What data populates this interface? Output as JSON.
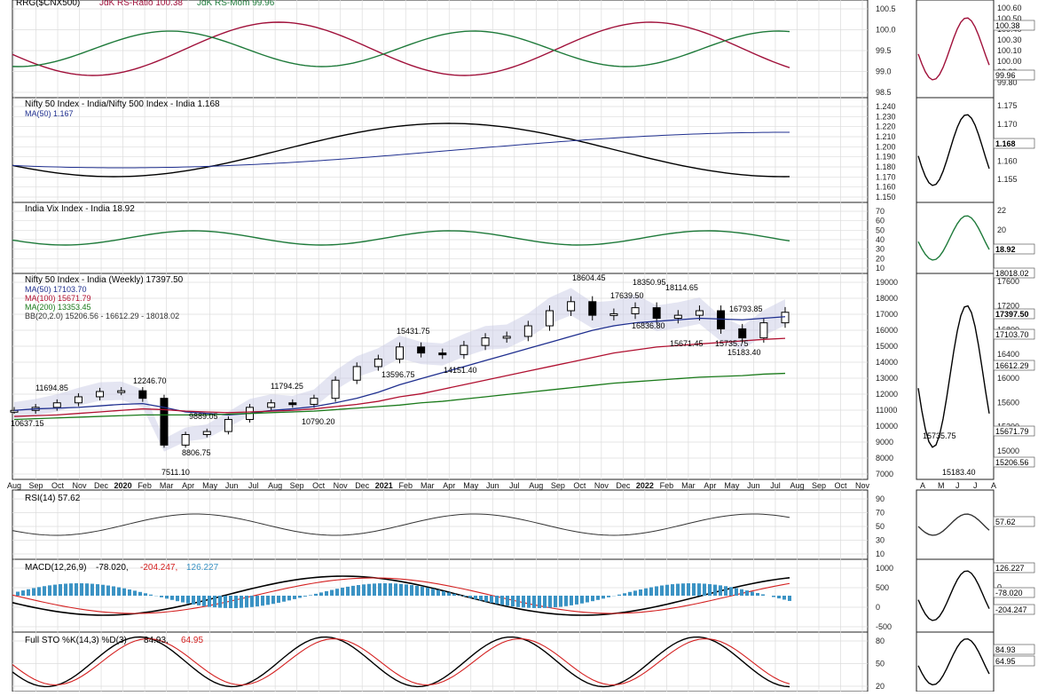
{
  "colors": {
    "frame": "#222222",
    "grid": "#d8d8d8",
    "price": "#000000",
    "ma50": "#1f2f8f",
    "ma100": "#b01030",
    "ma200": "#1a7a1a",
    "bb": "#c9cce6",
    "rrg_ratio": "#a0103a",
    "rrg_mom": "#1e7a3a",
    "rsi": "#333333",
    "rsi_fill_hi": "#3c7a3c",
    "rsi_fill_lo": "#8a1d2d",
    "macd_hist": "#3b93c4",
    "sto_d": "#d42020"
  },
  "panels": {
    "rrg": {
      "legend_prefix": "RRG($CNX500)",
      "legend_ratio": "JdK RS-Ratio 100.38",
      "legend_mom": "JdK RS-Mom 99.96",
      "ticks": [
        "100.5",
        "100.0",
        "99.5",
        "99.0",
        "98.5"
      ],
      "side_ticks": [
        "100.60",
        "100.50",
        "100.40",
        "100.30",
        "100.10",
        "100.00",
        "99.90",
        "99.80"
      ],
      "side_label_ratio": "100.38",
      "side_label_mom": "99.96"
    },
    "rs": {
      "legend": "Nifty 50 Index - India/Nifty 500 Index - India 1.168",
      "legend_ma": "MA(50) 1.167",
      "ticks": [
        "1.240",
        "1.230",
        "1.220",
        "1.210",
        "1.200",
        "1.190",
        "1.180",
        "1.170",
        "1.160",
        "1.150"
      ],
      "side_ticks": [
        "1.175",
        "1.170",
        "1.165",
        "1.160",
        "1.155"
      ],
      "side_label": "1.168"
    },
    "vix": {
      "legend": "India Vix Index - India 18.92",
      "ticks": [
        "70",
        "60",
        "50",
        "40",
        "30",
        "20",
        "10"
      ],
      "side_ticks": [
        "22",
        "20",
        "18"
      ],
      "side_label": "18.92"
    },
    "price": {
      "legend": "Nifty 50 Index - India (Weekly) 17397.50",
      "legend_ma50": "MA(50) 17103.70",
      "legend_ma100": "MA(100) 15671.79",
      "legend_ma200": "MA(200) 13353.45",
      "legend_bb": "BB(20,2.0) 15206.56 - 16612.29 - 18018.02",
      "ticks": [
        "19000",
        "18000",
        "17000",
        "16000",
        "15000",
        "14000",
        "13000",
        "12000",
        "11000",
        "10000",
        "9000",
        "8000",
        "7000"
      ],
      "annotations": [
        "11694.85",
        "12246.70",
        "10637.15",
        "9889.05",
        "8806.75",
        "7511.10",
        "11794.25",
        "10790.20",
        "15431.75",
        "13596.75",
        "14151.40",
        "18604.45",
        "17639.50",
        "18350.95",
        "18114.65",
        "16836.80",
        "16793.85",
        "15671.45",
        "15735.75",
        "15183.40"
      ],
      "side_ticks": [
        "17600",
        "17200",
        "16800",
        "16400",
        "16000",
        "15600",
        "15200",
        "15000"
      ],
      "side_labels": [
        "18018.02",
        "17397.50",
        "17103.70",
        "16612.29",
        "15671.79",
        "15206.56"
      ],
      "side_annotations": [
        "15735.75",
        "15183.40"
      ],
      "side_months": [
        "A",
        "M",
        "J",
        "J",
        "A"
      ]
    },
    "rsi": {
      "legend": "RSI(14) 57.62",
      "ticks": [
        "90",
        "70",
        "50",
        "30",
        "10"
      ],
      "side_label": "57.62"
    },
    "macd": {
      "legend_prefix": "MACD(12,26,9)",
      "legend_macd": "-78.020,",
      "legend_signal": "-204.247,",
      "legend_hist": "126.227",
      "ticks": [
        "1000",
        "500",
        "0",
        "-500"
      ],
      "side_labels": [
        "126.227",
        "-78.020",
        "-204.247"
      ],
      "side_ticks": [
        "500",
        "0",
        "-300"
      ]
    },
    "sto": {
      "legend_prefix": "Full STO %K(14,3) %D(3)",
      "legend_k": "84.93,",
      "legend_d": "64.95",
      "ticks": [
        "80",
        "50",
        "20"
      ],
      "side_labels": [
        "84.93",
        "64.95"
      ]
    }
  },
  "xaxis": {
    "labels": [
      "Aug",
      "Sep",
      "Oct",
      "Nov",
      "Dec",
      "2020",
      "Feb",
      "Mar",
      "Apr",
      "May",
      "Jun",
      "Jul",
      "Aug",
      "Sep",
      "Oct",
      "Nov",
      "Dec",
      "2021",
      "Feb",
      "Mar",
      "Apr",
      "May",
      "Jun",
      "Jul",
      "Aug",
      "Sep",
      "Oct",
      "Nov",
      "Dec",
      "2022",
      "Feb",
      "Mar",
      "Apr",
      "May",
      "Jun",
      "Jul",
      "Aug",
      "Sep",
      "Oct",
      "Nov"
    ]
  },
  "chart_data": {
    "type": "line",
    "title": "Nifty 50 Index - India (Weekly) 17397.50",
    "x": [
      "2019-08",
      "2019-09",
      "2019-10",
      "2019-11",
      "2019-12",
      "2020-01",
      "2020-02",
      "2020-03",
      "2020-04",
      "2020-05",
      "2020-06",
      "2020-07",
      "2020-08",
      "2020-09",
      "2020-10",
      "2020-11",
      "2020-12",
      "2021-01",
      "2021-02",
      "2021-03",
      "2021-04",
      "2021-05",
      "2021-06",
      "2021-07",
      "2021-08",
      "2021-09",
      "2021-10",
      "2021-11",
      "2021-12",
      "2022-01",
      "2022-02",
      "2022-03",
      "2022-04",
      "2022-05",
      "2022-06",
      "2022-07",
      "2022-08"
    ],
    "series": [
      {
        "name": "Nifty 50 Index - India (Weekly)",
        "values": [
          10900,
          11100,
          11400,
          11800,
          12150,
          12200,
          11700,
          8600,
          9300,
          9500,
          10300,
          11100,
          11400,
          11300,
          11700,
          12900,
          13800,
          14300,
          15100,
          14700,
          14600,
          15200,
          15700,
          15800,
          16500,
          17500,
          18100,
          17200,
          17300,
          17700,
          17000,
          17200,
          17500,
          16300,
          15700,
          16700,
          17397.5
        ]
      },
      {
        "name": "MA(50) 17103.70",
        "values": [
          10900,
          11000,
          11050,
          11100,
          11200,
          11300,
          11350,
          11100,
          10800,
          10700,
          10600,
          10700,
          10900,
          11000,
          11150,
          11400,
          11700,
          12100,
          12600,
          13000,
          13400,
          13800,
          14200,
          14600,
          15000,
          15400,
          15800,
          16200,
          16500,
          16700,
          16800,
          16900,
          17000,
          16950,
          16900,
          17000,
          17103.7
        ]
      },
      {
        "name": "MA(100) 15671.79",
        "values": [
          10500,
          10550,
          10600,
          10700,
          10800,
          10900,
          11000,
          10950,
          10850,
          10800,
          10750,
          10800,
          10850,
          10900,
          11000,
          11150,
          11300,
          11500,
          11800,
          12000,
          12300,
          12600,
          12900,
          13200,
          13500,
          13800,
          14100,
          14400,
          14700,
          14900,
          15100,
          15200,
          15300,
          15400,
          15500,
          15600,
          15671.79
        ]
      },
      {
        "name": "MA(200) 13353.45",
        "values": [
          10300,
          10350,
          10400,
          10450,
          10500,
          10550,
          10600,
          10600,
          10600,
          10600,
          10650,
          10700,
          10750,
          10800,
          10850,
          10950,
          11050,
          11150,
          11250,
          11400,
          11500,
          11650,
          11800,
          11950,
          12100,
          12250,
          12400,
          12550,
          12700,
          12800,
          12900,
          13000,
          13100,
          13150,
          13200,
          13300,
          13353.45
        ]
      }
    ],
    "bb": {
      "lower": 15206.56,
      "mid": 16612.29,
      "upper": 18018.02
    },
    "ylim": [
      6800,
      19500
    ],
    "indicators": {
      "rsi_last": 57.62,
      "macd_last": -78.02,
      "macd_signal_last": -204.247,
      "macd_hist_last": 126.227,
      "sto_k_last": 84.93,
      "sto_d_last": 64.95,
      "vix_last": 18.92,
      "rs_ratio_last": 1.168,
      "rs_ma_last": 1.167,
      "rrg_ratio_last": 100.38,
      "rrg_mom_last": 99.96
    }
  }
}
